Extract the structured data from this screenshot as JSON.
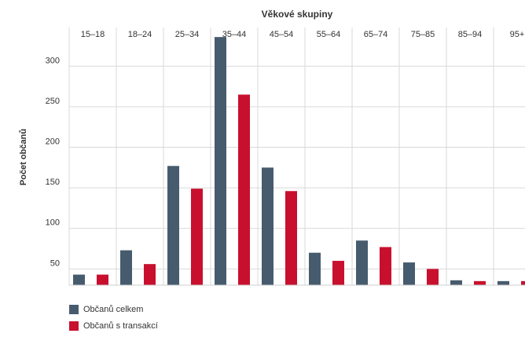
{
  "chart_data": {
    "type": "bar",
    "title": "Věkové skupiny",
    "ylabel": "Počet občanů",
    "xlabel": "",
    "categories": [
      "15–18",
      "18–24",
      "25–34",
      "35–44",
      "45–54",
      "55–64",
      "65–74",
      "75–85",
      "85–94",
      "95+"
    ],
    "yticks": [
      50,
      100,
      150,
      200,
      250,
      300
    ],
    "ylim": [
      30,
      340
    ],
    "series": [
      {
        "name": "Občanů celkem",
        "color": "#475b6e",
        "values": [
          43,
          73,
          177,
          336,
          175,
          70,
          85,
          58,
          36,
          35
        ]
      },
      {
        "name": "Občanů s transakcí",
        "color": "#c8102e",
        "values": [
          43,
          56,
          149,
          265,
          146,
          60,
          77,
          50,
          35,
          35
        ]
      }
    ],
    "legend_position": "bottom-left",
    "grid": "vertical-category-dividers"
  }
}
